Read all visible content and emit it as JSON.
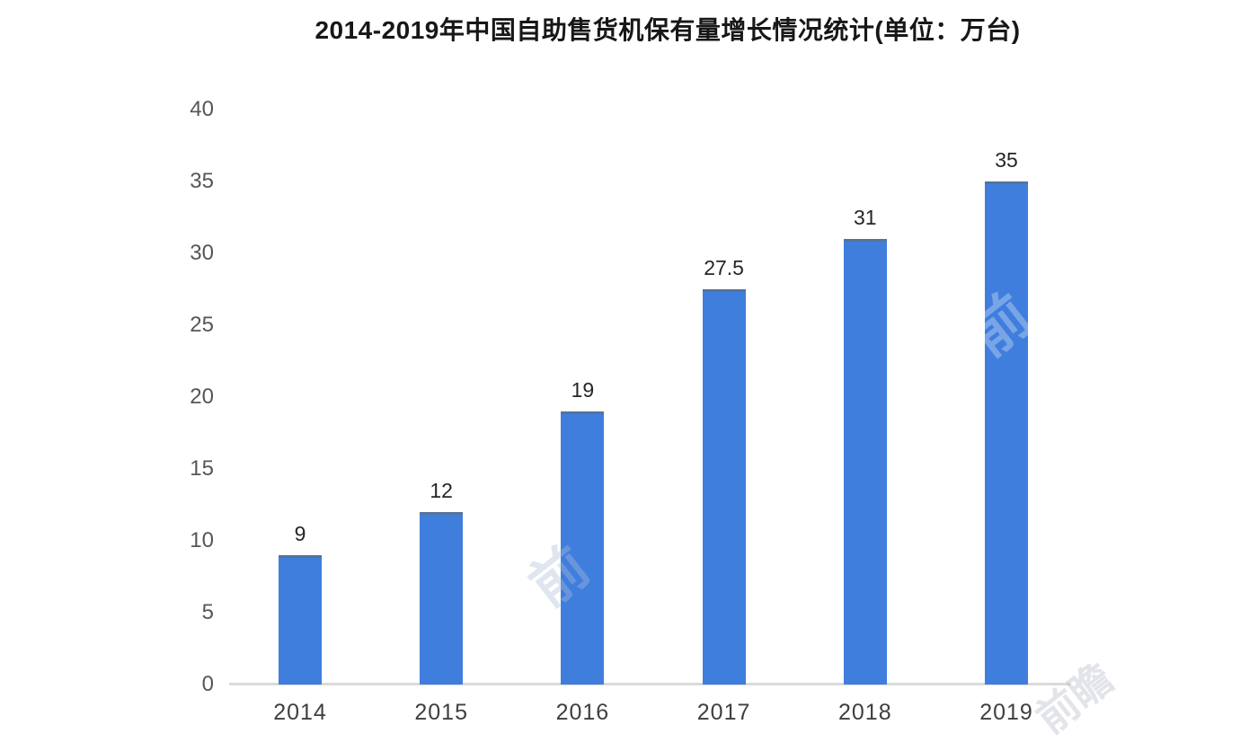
{
  "chart": {
    "title": "2014-2019年中国自助售货机保有量增长情况统计(单位：万台)"
  },
  "watermark": {
    "glyph": "前",
    "text": "前瞻"
  },
  "chart_data": {
    "type": "bar",
    "title": "2014-2019年中国自助售货机保有量增长情况统计(单位：万台)",
    "unit": "万台",
    "categories": [
      "2014",
      "2015",
      "2016",
      "2017",
      "2018",
      "2019"
    ],
    "values": [
      9,
      12,
      19,
      27.5,
      31,
      35
    ],
    "value_labels": [
      "9",
      "12",
      "19",
      "27.5",
      "31",
      "35"
    ],
    "yticks": [
      "0",
      "5",
      "10",
      "15",
      "20",
      "25",
      "30",
      "35",
      "40"
    ],
    "ylim": [
      0,
      40
    ],
    "xlabel": "",
    "ylabel": "",
    "grid": false,
    "legend": "none",
    "layout_hints": {
      "bar_color": "#3f7edd",
      "bar_top_edge_color": "#54749b",
      "baseline_color": "#dadada",
      "axis_tick_color": "#565656",
      "x_tick_color": "#3f3f3f",
      "value_label_color": "#262626",
      "title_color": "#171717",
      "background_color": "#ffffff"
    }
  }
}
